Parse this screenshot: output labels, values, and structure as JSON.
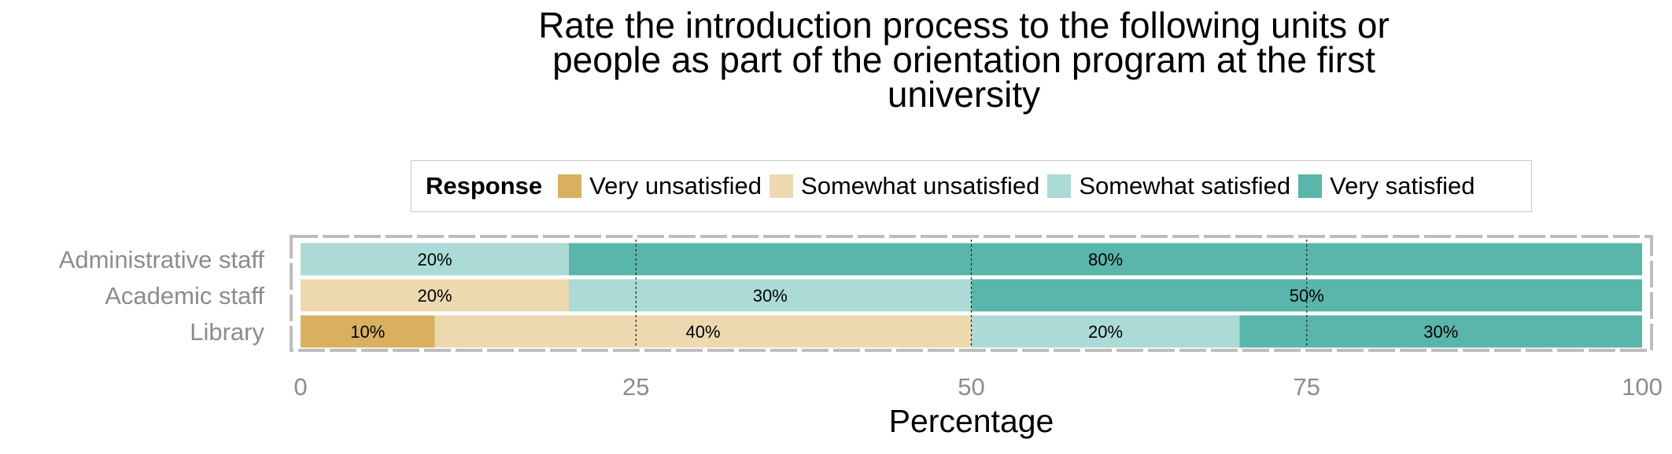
{
  "chart_data": {
    "type": "bar",
    "orientation": "horizontal",
    "stacked": true,
    "title_lines": [
      "Rate the introduction process to the following units or",
      "people as part of the orientation program at the first",
      "university"
    ],
    "xlabel": "Percentage",
    "ylabel": "",
    "xlim": [
      0,
      100
    ],
    "x_ticks": [
      0,
      25,
      50,
      75,
      100
    ],
    "vertical_reference_lines": [
      25,
      50,
      75
    ],
    "legend_title": "Response",
    "legend_position": "top",
    "categories": [
      "Administrative staff",
      "Academic staff",
      "Library"
    ],
    "series": [
      {
        "name": "Very unsatisfied",
        "color": "#d9b05f",
        "values": [
          0,
          0,
          10
        ]
      },
      {
        "name": "Somewhat unsatisfied",
        "color": "#edd9b0",
        "values": [
          0,
          20,
          40
        ]
      },
      {
        "name": "Somewhat satisfied",
        "color": "#acdad6",
        "values": [
          20,
          30,
          20
        ]
      },
      {
        "name": "Very satisfied",
        "color": "#5ab5aa",
        "values": [
          80,
          50,
          30
        ]
      }
    ],
    "data_labels": [
      [
        "",
        "",
        "20%",
        "80%"
      ],
      [
        "",
        "20%",
        "30%",
        "50%"
      ],
      [
        "10%",
        "40%",
        "20%",
        "30%"
      ]
    ],
    "grid": true
  }
}
